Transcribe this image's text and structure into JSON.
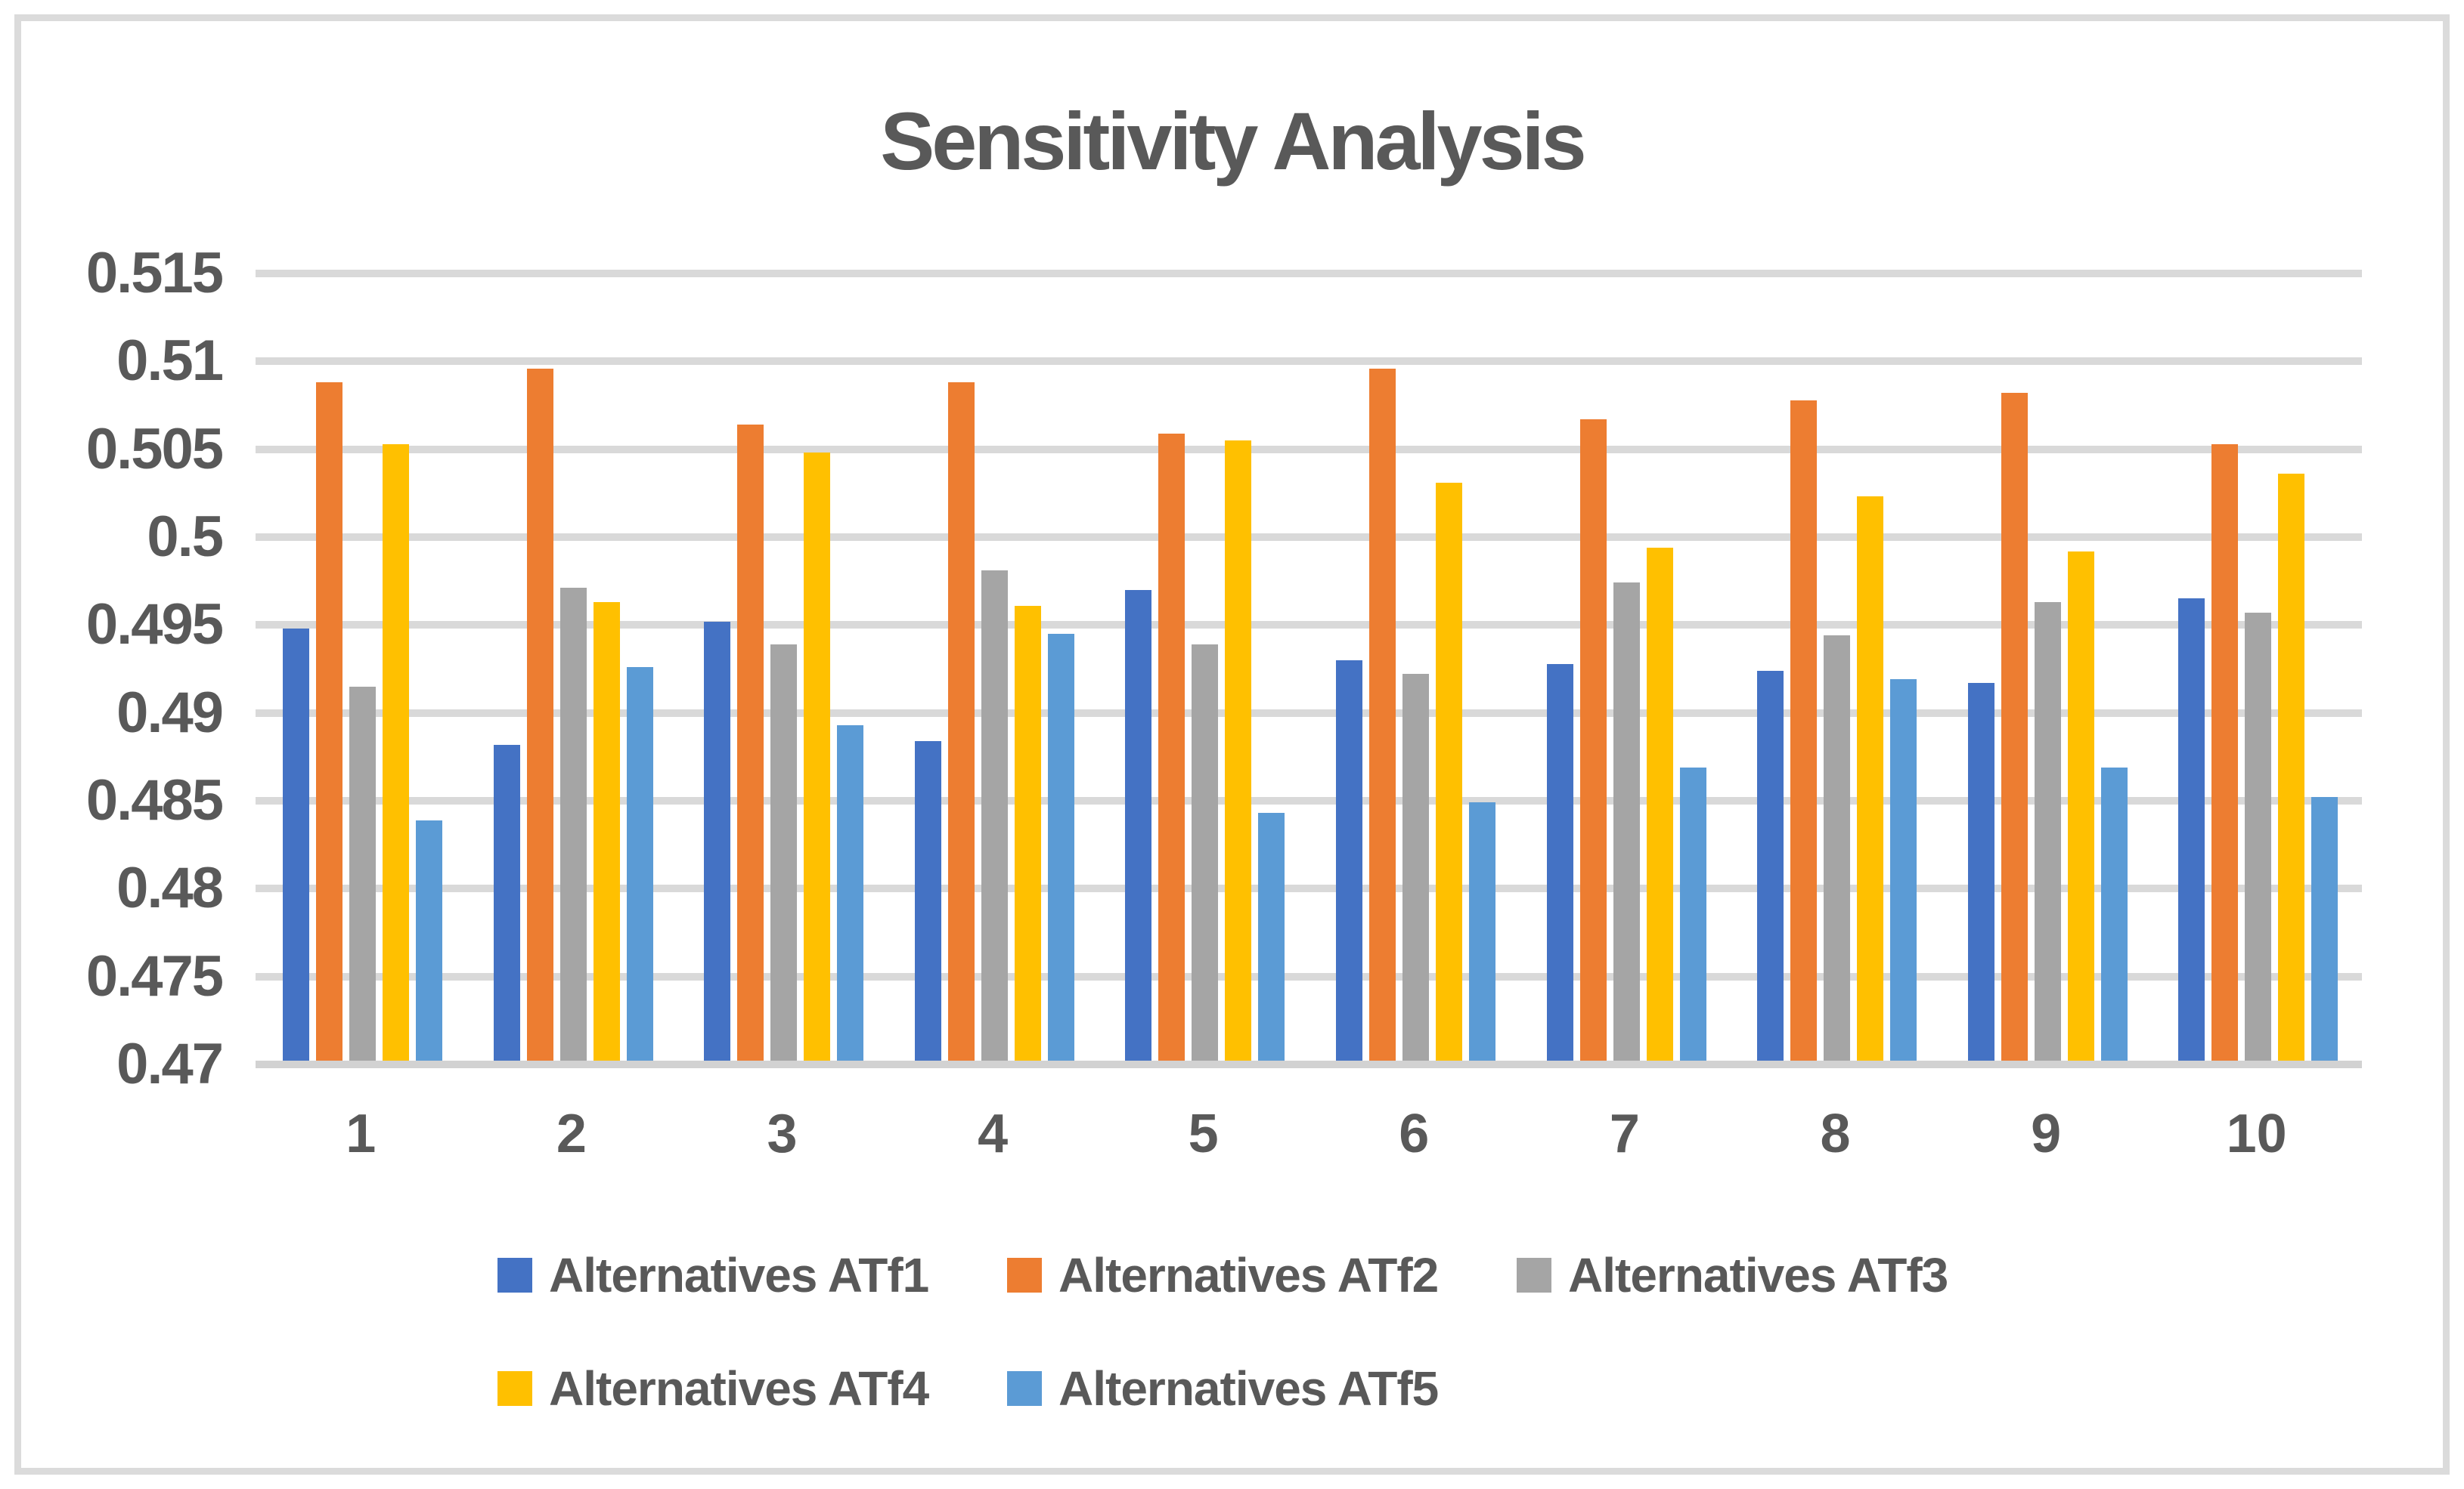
{
  "chart_data": {
    "type": "bar",
    "title": "Sensitivity Analysis",
    "xlabel": "",
    "ylabel": "",
    "categories": [
      "1",
      "2",
      "3",
      "4",
      "5",
      "6",
      "7",
      "8",
      "9",
      "10"
    ],
    "series": [
      {
        "name": "Alternatives ATf1",
        "color": "#4472C4",
        "values": [
          0.4948,
          0.4882,
          0.4952,
          0.4884,
          0.497,
          0.493,
          0.4928,
          0.4924,
          0.4917,
          0.4965
        ]
      },
      {
        "name": "Alternatives ATf2",
        "color": "#ED7D31",
        "values": [
          0.5088,
          0.5096,
          0.5064,
          0.5088,
          0.5059,
          0.5096,
          0.5067,
          0.5078,
          0.5082,
          0.5053
        ]
      },
      {
        "name": "Alternatives ATf3",
        "color": "#A5A5A5",
        "values": [
          0.4915,
          0.4971,
          0.4939,
          0.4981,
          0.4939,
          0.4922,
          0.4974,
          0.4944,
          0.4963,
          0.4957
        ]
      },
      {
        "name": "Alternatives ATf4",
        "color": "#FFC000",
        "values": [
          0.5053,
          0.4963,
          0.5048,
          0.4961,
          0.5055,
          0.5031,
          0.4994,
          0.5023,
          0.4992,
          0.5036
        ]
      },
      {
        "name": "Alternatives ATf5",
        "color": "#5B9BD5",
        "values": [
          0.4839,
          0.4926,
          0.4893,
          0.4945,
          0.4843,
          0.4849,
          0.4869,
          0.4919,
          0.4869,
          0.4852
        ]
      }
    ],
    "y_ticks": [
      "0.515",
      "0.51",
      "0.505",
      "0.5",
      "0.495",
      "0.49",
      "0.485",
      "0.48",
      "0.475",
      "0.47"
    ],
    "ylim": [
      0.47,
      0.515
    ],
    "y_step": 0.005,
    "grid": true,
    "legend_position": "bottom",
    "legend_rows": [
      [
        0,
        1,
        2
      ],
      [
        3,
        4
      ]
    ]
  },
  "ui_colors": {
    "text": "#595959",
    "gridline": "#D9D9D9",
    "axis_line": "#D2D2D2",
    "frame_border": "#DBDBDB",
    "background": "#FFFFFF"
  }
}
